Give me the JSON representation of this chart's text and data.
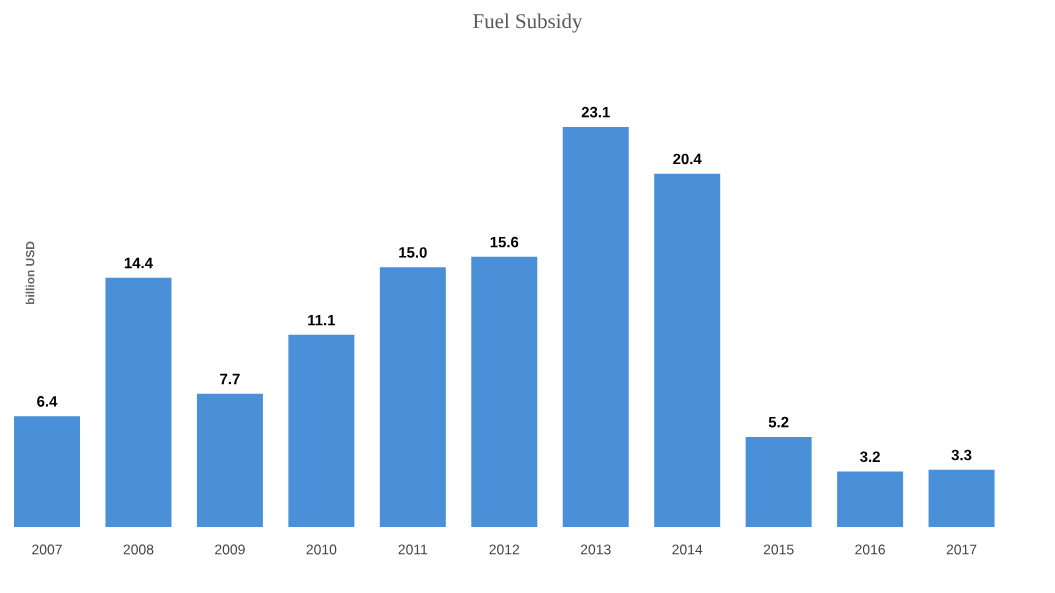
{
  "chart_data": {
    "type": "bar",
    "title": "Fuel Subsidy",
    "ylabel": "billion USD",
    "categories": [
      "2007",
      "2008",
      "2009",
      "2010",
      "2011",
      "2012",
      "2013",
      "2014",
      "2015",
      "2016",
      "2017"
    ],
    "values": [
      6.4,
      14.4,
      7.7,
      11.1,
      15.0,
      15.6,
      23.1,
      20.4,
      5.2,
      3.2,
      3.3
    ],
    "color": "#4a90d9",
    "value_labels": [
      "6.4",
      "14.4",
      "7.7",
      "11.1",
      "15.0",
      "15.6",
      "23.1",
      "20.4",
      "5.2",
      "3.2",
      "3.3"
    ]
  }
}
